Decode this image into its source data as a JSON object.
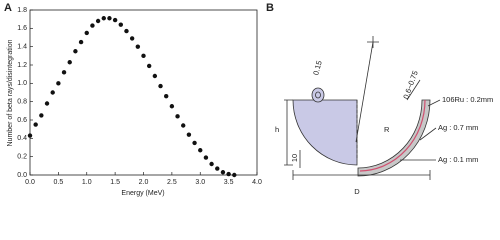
{
  "panel_labels": [
    "A",
    "B"
  ],
  "chart_data": {
    "type": "scatter",
    "x_label": "Energy (MeV)",
    "y_label": "Number of beta rays/disintegration",
    "color": "#111111",
    "x": [
      0,
      0.1,
      0.2,
      0.3,
      0.4,
      0.5,
      0.6,
      0.7,
      0.8,
      0.9,
      1.0,
      1.1,
      1.2,
      1.3,
      1.4,
      1.5,
      1.6,
      1.7,
      1.8,
      1.9,
      2.0,
      2.1,
      2.2,
      2.3,
      2.4,
      2.5,
      2.6,
      2.7,
      2.8,
      2.9,
      3.0,
      3.1,
      3.2,
      3.3,
      3.4,
      3.5,
      3.6
    ],
    "values": [
      0.43,
      0.55,
      0.65,
      0.78,
      0.9,
      1.0,
      1.12,
      1.23,
      1.35,
      1.45,
      1.55,
      1.63,
      1.68,
      1.71,
      1.71,
      1.69,
      1.64,
      1.57,
      1.49,
      1.4,
      1.3,
      1.19,
      1.08,
      0.97,
      0.86,
      0.75,
      0.64,
      0.54,
      0.44,
      0.35,
      0.27,
      0.19,
      0.12,
      0.07,
      0.03,
      0.01,
      0.0
    ],
    "xlim": [
      0,
      4
    ],
    "ylim": [
      0,
      1.8
    ],
    "xticks": [
      {
        "value": 0,
        "label": "0.0"
      },
      0.5,
      {
        "value": 1,
        "label": "1.0"
      },
      1.5,
      {
        "value": 2,
        "label": "2.0"
      },
      2.5,
      {
        "value": 3,
        "label": "3.0"
      },
      3.5,
      {
        "value": 4,
        "label": "4.0"
      }
    ],
    "yticks": [
      {
        "value": 0,
        "label": "0.0"
      },
      0.2,
      0.4,
      0.6,
      0.8,
      {
        "value": 1,
        "label": "1.0"
      },
      1.2,
      1.4,
      1.6,
      1.8
    ]
  },
  "diagram": {
    "labels": [
      "0.15",
      "0.6~0.75",
      "R",
      "h",
      "10",
      "D",
      "106Ru : 0.2mm",
      "Ag : 0.7 mm",
      "Ag : 0.1 mm"
    ]
  }
}
